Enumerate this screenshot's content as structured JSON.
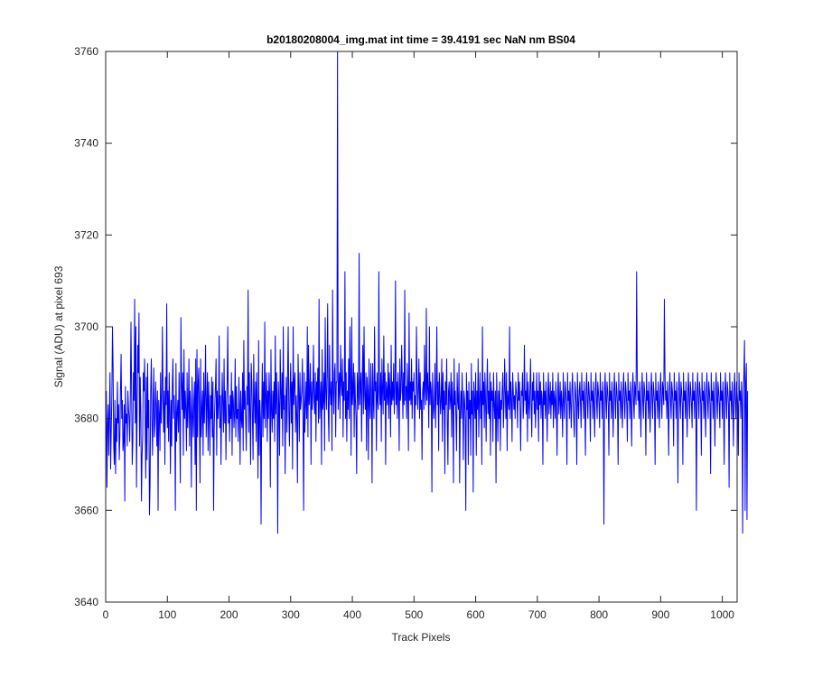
{
  "chart_data": {
    "type": "line",
    "title": "b20180208004_img.mat int time = 39.4191 sec  NaN nm BS04",
    "xlabel": "Track Pixels",
    "ylabel": "Signal (ADU) at pixel 693",
    "xlim": [
      0,
      1024
    ],
    "ylim": [
      3640,
      3760
    ],
    "xticks": [
      0,
      100,
      200,
      300,
      400,
      500,
      600,
      700,
      800,
      900,
      1000
    ],
    "yticks": [
      3640,
      3660,
      3680,
      3700,
      3720,
      3740,
      3760
    ],
    "grid": false,
    "series": [
      {
        "color": "#0000ff",
        "x_start": 1,
        "x_step": 1,
        "values": [
          3686,
          3665,
          3679,
          3683,
          3672,
          3681,
          3690,
          3669,
          3677,
          3685,
          3700,
          3691,
          3674,
          3670,
          3684,
          3668,
          3680,
          3675,
          3688,
          3679,
          3683,
          3671,
          3676,
          3686,
          3694,
          3680,
          3684,
          3673,
          3675,
          3683,
          3662,
          3687,
          3679,
          3681,
          3674,
          3686,
          3682,
          3680,
          3675,
          3685,
          3701,
          3687,
          3670,
          3675,
          3690,
          3684,
          3706,
          3679,
          3700,
          3665,
          3682,
          3696,
          3690,
          3703,
          3674,
          3689,
          3681,
          3662,
          3672,
          3676,
          3690,
          3686,
          3693,
          3680,
          3667,
          3689,
          3671,
          3692,
          3678,
          3684,
          3659,
          3666,
          3686,
          3693,
          3680,
          3672,
          3683,
          3691,
          3676,
          3679,
          3688,
          3683,
          3674,
          3686,
          3660,
          3684,
          3681,
          3673,
          3690,
          3679,
          3685,
          3700,
          3684,
          3677,
          3686,
          3670,
          3689,
          3683,
          3705,
          3678,
          3686,
          3675,
          3690,
          3681,
          3668,
          3684,
          3674,
          3687,
          3693,
          3680,
          3685,
          3680,
          3660,
          3692,
          3675,
          3681,
          3684,
          3677,
          3690,
          3679,
          3666,
          3702,
          3688,
          3682,
          3690,
          3672,
          3695,
          3680,
          3686,
          3682,
          3673,
          3690,
          3678,
          3683,
          3693,
          3674,
          3686,
          3681,
          3665,
          3689,
          3681,
          3676,
          3684,
          3688,
          3670,
          3693,
          3660,
          3695,
          3676,
          3688,
          3691,
          3680,
          3666,
          3693,
          3676,
          3682,
          3686,
          3672,
          3690,
          3679,
          3685,
          3696,
          3676,
          3683,
          3690,
          3673,
          3688,
          3681,
          3672,
          3685,
          3680,
          3689,
          3676,
          3688,
          3660,
          3678,
          3683,
          3687,
          3693,
          3672,
          3686,
          3680,
          3683,
          3698,
          3678,
          3685,
          3670,
          3681,
          3690,
          3683,
          3677,
          3693,
          3679,
          3686,
          3671,
          3683,
          3688,
          3700,
          3679,
          3683,
          3675,
          3685,
          3680,
          3690,
          3672,
          3686,
          3684,
          3678,
          3681,
          3693,
          3676,
          3687,
          3680,
          3682,
          3675,
          3689,
          3683,
          3670,
          3686,
          3680,
          3678,
          3690,
          3673,
          3697,
          3682,
          3686,
          3680,
          3673,
          3687,
          3683,
          3708,
          3677,
          3690,
          3681,
          3670,
          3692,
          3688,
          3680,
          3671,
          3694,
          3684,
          3679,
          3688,
          3675,
          3690,
          3681,
          3667,
          3697,
          3672,
          3684,
          3680,
          3657,
          3682,
          3692,
          3676,
          3688,
          3680,
          3701,
          3678,
          3684,
          3690,
          3675,
          3686,
          3680,
          3690,
          3685,
          3665,
          3695,
          3682,
          3677,
          3686,
          3680,
          3688,
          3675,
          3698,
          3681,
          3690,
          3683,
          3655,
          3688,
          3683,
          3672,
          3695,
          3686,
          3680,
          3690,
          3674,
          3700,
          3682,
          3685,
          3668,
          3683,
          3689,
          3677,
          3690,
          3700,
          3682,
          3674,
          3686,
          3692,
          3679,
          3688,
          3669,
          3700,
          3683,
          3688,
          3690,
          3677,
          3685,
          3680,
          3666,
          3694,
          3687,
          3675,
          3690,
          3682,
          3684,
          3686,
          3693,
          3679,
          3660,
          3690,
          3677,
          3683,
          3688,
          3680,
          3700,
          3676,
          3696,
          3683,
          3686,
          3692,
          3670,
          3688,
          3682,
          3686,
          3696,
          3684,
          3681,
          3690,
          3675,
          3688,
          3684,
          3691,
          3679,
          3706,
          3680,
          3684,
          3688,
          3670,
          3695,
          3682,
          3684,
          3690,
          3673,
          3702,
          3686,
          3682,
          3690,
          3705,
          3681,
          3675,
          3696,
          3686,
          3683,
          3688,
          3673,
          3708,
          3686,
          3681,
          3690,
          3692,
          3676,
          3688,
          3688,
          3760,
          3682,
          3686,
          3690,
          3680,
          3696,
          3688,
          3685,
          3693,
          3676,
          3688,
          3684,
          3712,
          3680,
          3690,
          3675,
          3686,
          3682,
          3693,
          3680,
          3700,
          3688,
          3672,
          3702,
          3683,
          3686,
          3692,
          3676,
          3690,
          3684,
          3680,
          3668,
          3690,
          3686,
          3682,
          3716,
          3683,
          3687,
          3690,
          3675,
          3688,
          3696,
          3681,
          3700,
          3685,
          3682,
          3690,
          3673,
          3689,
          3686,
          3671,
          3693,
          3683,
          3680,
          3692,
          3686,
          3666,
          3692,
          3684,
          3680,
          3700,
          3686,
          3688,
          3673,
          3690,
          3684,
          3682,
          3712,
          3686,
          3683,
          3690,
          3675,
          3693,
          3686,
          3681,
          3698,
          3684,
          3690,
          3670,
          3688,
          3686,
          3683,
          3692,
          3680,
          3690,
          3686,
          3676,
          3696,
          3683,
          3688,
          3684,
          3692,
          3681,
          3686,
          3710,
          3683,
          3688,
          3680,
          3690,
          3686,
          3673,
          3693,
          3684,
          3686,
          3696,
          3688,
          3680,
          3690,
          3683,
          3708,
          3684,
          3687,
          3680,
          3692,
          3686,
          3673,
          3703,
          3684,
          3688,
          3683,
          3693,
          3680,
          3688,
          3686,
          3690,
          3675,
          3685,
          3683,
          3700,
          3688,
          3682,
          3687,
          3693,
          3680,
          3690,
          3682,
          3684,
          3671,
          3686,
          3688,
          3682,
          3696,
          3686,
          3683,
          3704,
          3684,
          3690,
          3686,
          3678,
          3700,
          3683,
          3688,
          3686,
          3664,
          3690,
          3684,
          3680,
          3683,
          3692,
          3678,
          3686,
          3700,
          3683,
          3688,
          3673,
          3690,
          3686,
          3681,
          3684,
          3693,
          3675,
          3690,
          3682,
          3686,
          3668,
          3688,
          3683,
          3693,
          3680,
          3670,
          3686,
          3688,
          3682,
          3684,
          3690,
          3676,
          3688,
          3684,
          3666,
          3693,
          3683,
          3686,
          3680,
          3673,
          3690,
          3684,
          3682,
          3692,
          3666,
          3681,
          3686,
          3680,
          3690,
          3683,
          3671,
          3686,
          3684,
          3680,
          3660,
          3690,
          3682,
          3686,
          3670,
          3688,
          3680,
          3684,
          3672,
          3692,
          3681,
          3686,
          3664,
          3688,
          3684,
          3680,
          3690,
          3672,
          3686,
          3682,
          3693,
          3676,
          3684,
          3690,
          3680,
          3686,
          3670,
          3700,
          3683,
          3688,
          3678,
          3690,
          3684,
          3675,
          3686,
          3693,
          3681,
          3686,
          3680,
          3690,
          3672,
          3688,
          3684,
          3686,
          3675,
          3690,
          3683,
          3680,
          3686,
          3666,
          3690,
          3683,
          3675,
          3686,
          3680,
          3688,
          3673,
          3684,
          3682,
          3686,
          3690,
          3678,
          3683,
          3693,
          3686,
          3680,
          3690,
          3673,
          3686,
          3684,
          3682,
          3700,
          3680,
          3688,
          3684,
          3675,
          3690,
          3686,
          3682,
          3685,
          3680,
          3688,
          3686,
          3684,
          3678,
          3690,
          3684,
          3688,
          3682,
          3673,
          3686,
          3685,
          3690,
          3680,
          3683,
          3696,
          3684,
          3686,
          3681,
          3690,
          3675,
          3688,
          3684,
          3680,
          3686,
          3693,
          3683,
          3676,
          3688,
          3684,
          3690,
          3681,
          3686,
          3678,
          3684,
          3690,
          3682,
          3686,
          3675,
          3690,
          3683,
          3688,
          3680,
          3686,
          3684,
          3670,
          3690,
          3683,
          3686,
          3680,
          3688,
          3684,
          3675,
          3686,
          3690,
          3681,
          3684,
          3688,
          3680,
          3686,
          3683,
          3690,
          3678,
          3686,
          3684,
          3680,
          3688,
          3683,
          3672,
          3686,
          3690,
          3681,
          3684,
          3688,
          3680,
          3686,
          3683,
          3676,
          3690,
          3684,
          3680,
          3688,
          3686,
          3683,
          3670,
          3690,
          3684,
          3686,
          3680,
          3688,
          3683,
          3678,
          3686,
          3690,
          3684,
          3680,
          3676,
          3688,
          3686,
          3683,
          3670,
          3690,
          3684,
          3680,
          3686,
          3688,
          3683,
          3678,
          3690,
          3684,
          3686,
          3680,
          3688,
          3683,
          3672,
          3686,
          3690,
          3684,
          3680,
          3688,
          3686,
          3683,
          3675,
          3690,
          3684,
          3686,
          3680,
          3688,
          3683,
          3676,
          3686,
          3690,
          3684,
          3680,
          3688,
          3686,
          3683,
          3678,
          3690,
          3684,
          3686,
          3680,
          3688,
          3683,
          3657,
          3686,
          3690,
          3684,
          3680,
          3688,
          3686,
          3683,
          3672,
          3690,
          3684,
          3686,
          3680,
          3688,
          3683,
          3676,
          3686,
          3690,
          3684,
          3680,
          3688,
          3686,
          3683,
          3670,
          3690,
          3684,
          3686,
          3680,
          3688,
          3683,
          3678,
          3686,
          3690,
          3684,
          3680,
          3688,
          3686,
          3683,
          3675,
          3690,
          3684,
          3686,
          3680,
          3688,
          3683,
          3674,
          3686,
          3690,
          3684,
          3680,
          3688,
          3686,
          3683,
          3712,
          3690,
          3684,
          3686,
          3680,
          3688,
          3683,
          3676,
          3686,
          3690,
          3684,
          3680,
          3688,
          3686,
          3683,
          3672,
          3690,
          3684,
          3686,
          3680,
          3688,
          3683,
          3677,
          3686,
          3690,
          3684,
          3680,
          3688,
          3686,
          3683,
          3670,
          3690,
          3684,
          3686,
          3680,
          3688,
          3683,
          3678,
          3686,
          3690,
          3684,
          3680,
          3688,
          3686,
          3683,
          3706,
          3690,
          3684,
          3686,
          3680,
          3688,
          3683,
          3672,
          3686,
          3690,
          3684,
          3680,
          3688,
          3686,
          3683,
          3674,
          3690,
          3684,
          3686,
          3680,
          3688,
          3683,
          3666,
          3686,
          3690,
          3684,
          3680,
          3688,
          3686,
          3683,
          3670,
          3690,
          3684,
          3686,
          3680,
          3688,
          3683,
          3676,
          3686,
          3690,
          3684,
          3680,
          3688,
          3686,
          3683,
          3678,
          3690,
          3684,
          3686,
          3680,
          3688,
          3683,
          3660,
          3686,
          3690,
          3684,
          3680,
          3688,
          3686,
          3683,
          3672,
          3690,
          3684,
          3686,
          3680,
          3688,
          3683,
          3676,
          3686,
          3690,
          3684,
          3680,
          3688,
          3686,
          3683,
          3668,
          3690,
          3684,
          3686,
          3680,
          3688,
          3683,
          3674,
          3686,
          3690,
          3684,
          3680,
          3688,
          3686,
          3683,
          3678,
          3690,
          3684,
          3686,
          3680,
          3688,
          3683,
          3670,
          3686,
          3690,
          3684,
          3680,
          3688,
          3686,
          3683,
          3665,
          3690,
          3684,
          3686,
          3680,
          3688,
          3683,
          3674,
          3686,
          3690,
          3684,
          3680,
          3688,
          3686,
          3683,
          3672,
          3690,
          3684,
          3686,
          3680,
          3688,
          3683,
          3655,
          3686,
          3690,
          3697,
          3660,
          3688,
          3692,
          3658,
          3686
        ]
      }
    ]
  }
}
